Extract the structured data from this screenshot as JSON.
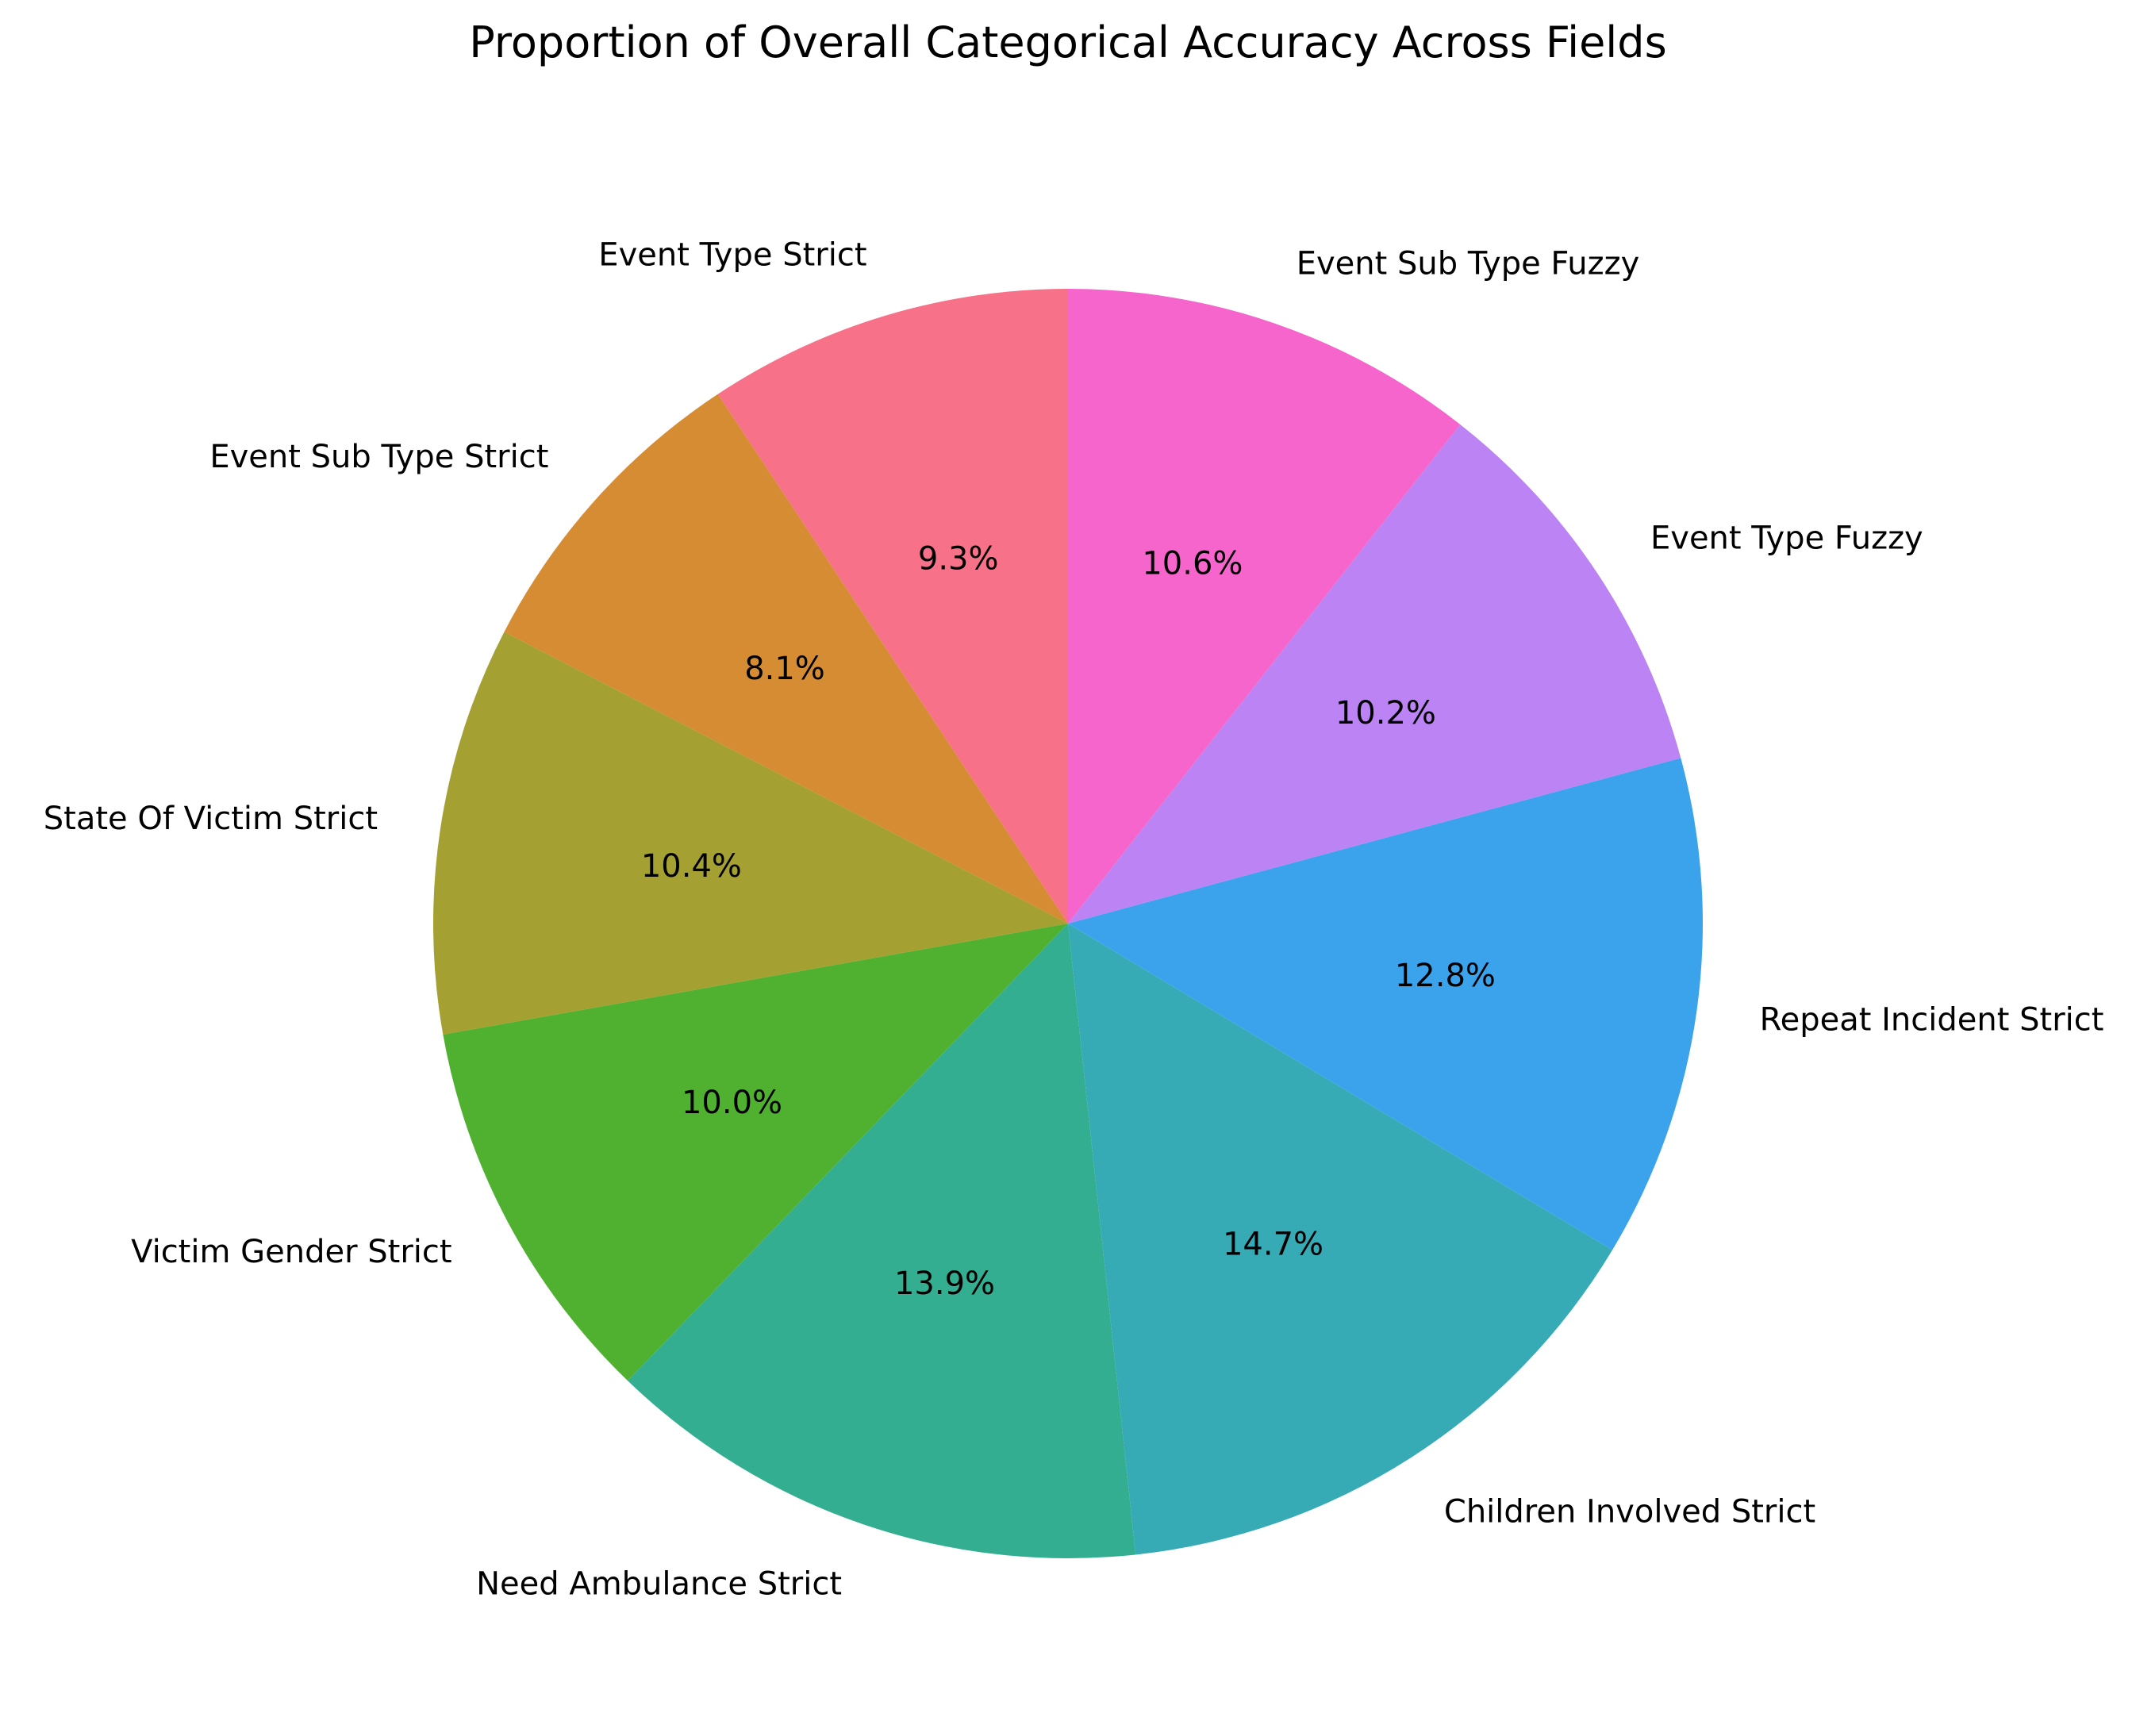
{
  "chart_data": {
    "type": "pie",
    "title": "Proportion of Overall Categorical Accuracy Across Fields",
    "start_angle_deg": 90,
    "direction": "counterclockwise",
    "slices": [
      {
        "label": "Event Type Strict",
        "value": 9.3,
        "pct_label": "9.3%",
        "color": "#f77189"
      },
      {
        "label": "Event Sub Type Strict",
        "value": 8.1,
        "pct_label": "8.1%",
        "color": "#d58c32"
      },
      {
        "label": "State Of Victim Strict",
        "value": 10.4,
        "pct_label": "10.4%",
        "color": "#a4a031"
      },
      {
        "label": "Victim Gender Strict",
        "value": 10.0,
        "pct_label": "10.0%",
        "color": "#50b131"
      },
      {
        "label": "Need Ambulance Strict",
        "value": 13.9,
        "pct_label": "13.9%",
        "color": "#34ae91"
      },
      {
        "label": "Children Involved Strict",
        "value": 14.7,
        "pct_label": "14.7%",
        "color": "#37abb5"
      },
      {
        "label": "Repeat Incident Strict",
        "value": 12.8,
        "pct_label": "12.8%",
        "color": "#3ba3ec"
      },
      {
        "label": "Event Type Fuzzy",
        "value": 10.2,
        "pct_label": "10.2%",
        "color": "#bb83f4"
      },
      {
        "label": "Event Sub Type Fuzzy",
        "value": 10.6,
        "pct_label": "10.6%",
        "color": "#f565cc"
      }
    ]
  }
}
